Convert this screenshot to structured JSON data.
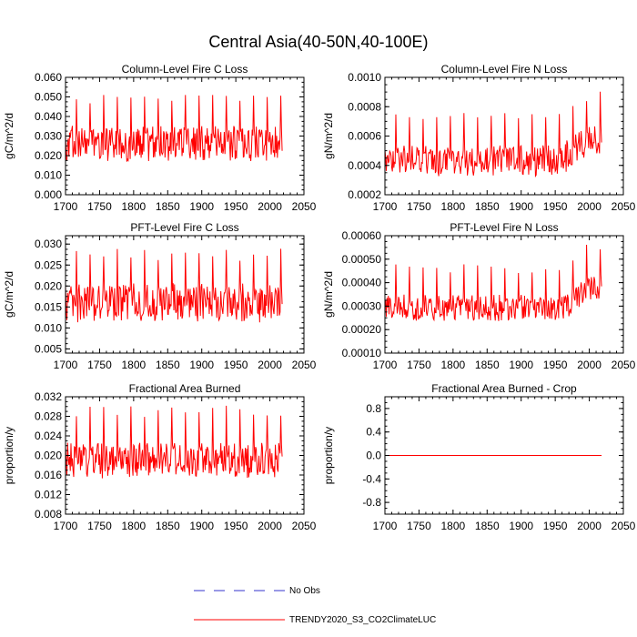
{
  "title": "Central Asia(40-50N,40-100E)",
  "legend": [
    {
      "label": "No Obs",
      "color": "#3333cc",
      "dash": true
    },
    {
      "label": "TRENDY2020_S3_CO2ClimateLUC",
      "color": "#ff0000",
      "dash": false
    }
  ],
  "chart_data": [
    {
      "type": "line",
      "title": "Column-Level Fire C Loss",
      "ylabel": "gC/m^2/d",
      "xlim": [
        1700,
        2050
      ],
      "xticks": [
        1700,
        1750,
        1800,
        1850,
        1900,
        1950,
        2000,
        2050
      ],
      "ylim": [
        0.0,
        0.06
      ],
      "yticks": [
        "0.000",
        "0.010",
        "0.020",
        "0.030",
        "0.040",
        "0.050",
        "0.060"
      ],
      "series": {
        "name": "TRENDY2020_S3_CO2ClimateLUC",
        "color": "#ff0000",
        "x_start": 1700,
        "x_end": 2018,
        "base": 0.026,
        "trend": 0,
        "lowSwing": 0.008,
        "spike": 0.049,
        "spikeVar": 0.003,
        "noise": 0.004,
        "late": null,
        "min": 0.012,
        "max": 0.051
      }
    },
    {
      "type": "line",
      "title": "Column-Level Fire N Loss",
      "ylabel": "gN/m^2/d",
      "xlim": [
        1700,
        2050
      ],
      "xticks": [
        1700,
        1750,
        1800,
        1850,
        1900,
        1950,
        2000,
        2050
      ],
      "ylim": [
        0.0002,
        0.001
      ],
      "yticks": [
        "0.0002",
        "0.0004",
        "0.0006",
        "0.0008",
        "0.0010"
      ],
      "series": {
        "name": "TRENDY2020_S3_CO2ClimateLUC",
        "color": "#ff0000",
        "x_start": 1700,
        "x_end": 2018,
        "base": 0.00043,
        "trend": 0,
        "lowSwing": 9e-05,
        "spike": 0.00074,
        "spikeVar": 3e-05,
        "noise": 5e-05,
        "late": {
          "from": 1960,
          "base": 0.00058,
          "spike": 0.00088
        },
        "min": 0.00025,
        "max": 0.00091
      }
    },
    {
      "type": "line",
      "title": "PFT-Level Fire C Loss",
      "ylabel": "gC/m^2/d",
      "xlim": [
        1700,
        2050
      ],
      "xticks": [
        1700,
        1750,
        1800,
        1850,
        1900,
        1950,
        2000,
        2050
      ],
      "ylim": [
        0.004,
        0.032
      ],
      "yticks": [
        "0.005",
        "0.010",
        "0.015",
        "0.020",
        "0.025",
        "0.030"
      ],
      "series": {
        "name": "TRENDY2020_S3_CO2ClimateLUC",
        "color": "#ff0000",
        "x_start": 1700,
        "x_end": 2018,
        "base": 0.016,
        "trend": 0,
        "lowSwing": 0.004,
        "spike": 0.0275,
        "spikeVar": 0.0015,
        "noise": 0.002,
        "late": null,
        "min": 0.005,
        "max": 0.029
      }
    },
    {
      "type": "line",
      "title": "PFT-Level Fire N Loss",
      "ylabel": "gN/m^2/d",
      "xlim": [
        1700,
        2050
      ],
      "xticks": [
        1700,
        1750,
        1800,
        1850,
        1900,
        1950,
        2000,
        2050
      ],
      "ylim": [
        0.0001,
        0.0006
      ],
      "yticks": [
        "0.00010",
        "0.00020",
        "0.00030",
        "0.00040",
        "0.00050",
        "0.00060"
      ],
      "series": {
        "name": "TRENDY2020_S3_CO2ClimateLUC",
        "color": "#ff0000",
        "x_start": 1700,
        "x_end": 2018,
        "base": 0.00029,
        "trend": 0,
        "lowSwing": 5e-05,
        "spike": 0.00046,
        "spikeVar": 2e-05,
        "noise": 3e-05,
        "late": {
          "from": 1960,
          "base": 0.00038,
          "spike": 0.00056
        },
        "min": 0.00018,
        "max": 0.00059
      }
    },
    {
      "type": "line",
      "title": "Fractional Area Burned",
      "ylabel": "proportion/y",
      "xlim": [
        1700,
        2050
      ],
      "xticks": [
        1700,
        1750,
        1800,
        1850,
        1900,
        1950,
        2000,
        2050
      ],
      "ylim": [
        0.008,
        0.032
      ],
      "yticks": [
        "0.008",
        "0.012",
        "0.016",
        "0.020",
        "0.024",
        "0.028",
        "0.032"
      ],
      "series": {
        "name": "TRENDY2020_S3_CO2ClimateLUC",
        "color": "#ff0000",
        "x_start": 1700,
        "x_end": 2018,
        "base": 0.019,
        "trend": 0,
        "lowSwing": 0.003,
        "spike": 0.029,
        "spikeVar": 0.0012,
        "noise": 0.0018,
        "late": null,
        "min": 0.009,
        "max": 0.031
      }
    },
    {
      "type": "line",
      "title": "Fractional Area Burned - Crop",
      "ylabel": "proportion/y",
      "xlim": [
        1700,
        2050
      ],
      "xticks": [
        1700,
        1750,
        1800,
        1850,
        1900,
        1950,
        2000,
        2050
      ],
      "ylim": [
        -1.0,
        1.0
      ],
      "yticks": [
        "-0.8",
        "-0.4",
        "0.0",
        "0.4",
        "0.8"
      ],
      "ytick_values": [
        -0.8,
        -0.4,
        0.0,
        0.4,
        0.8
      ],
      "series": {
        "name": "TRENDY2020_S3_CO2ClimateLUC",
        "color": "#ff0000",
        "x_start": 1700,
        "x_end": 2018,
        "constant": 0.0
      }
    }
  ]
}
